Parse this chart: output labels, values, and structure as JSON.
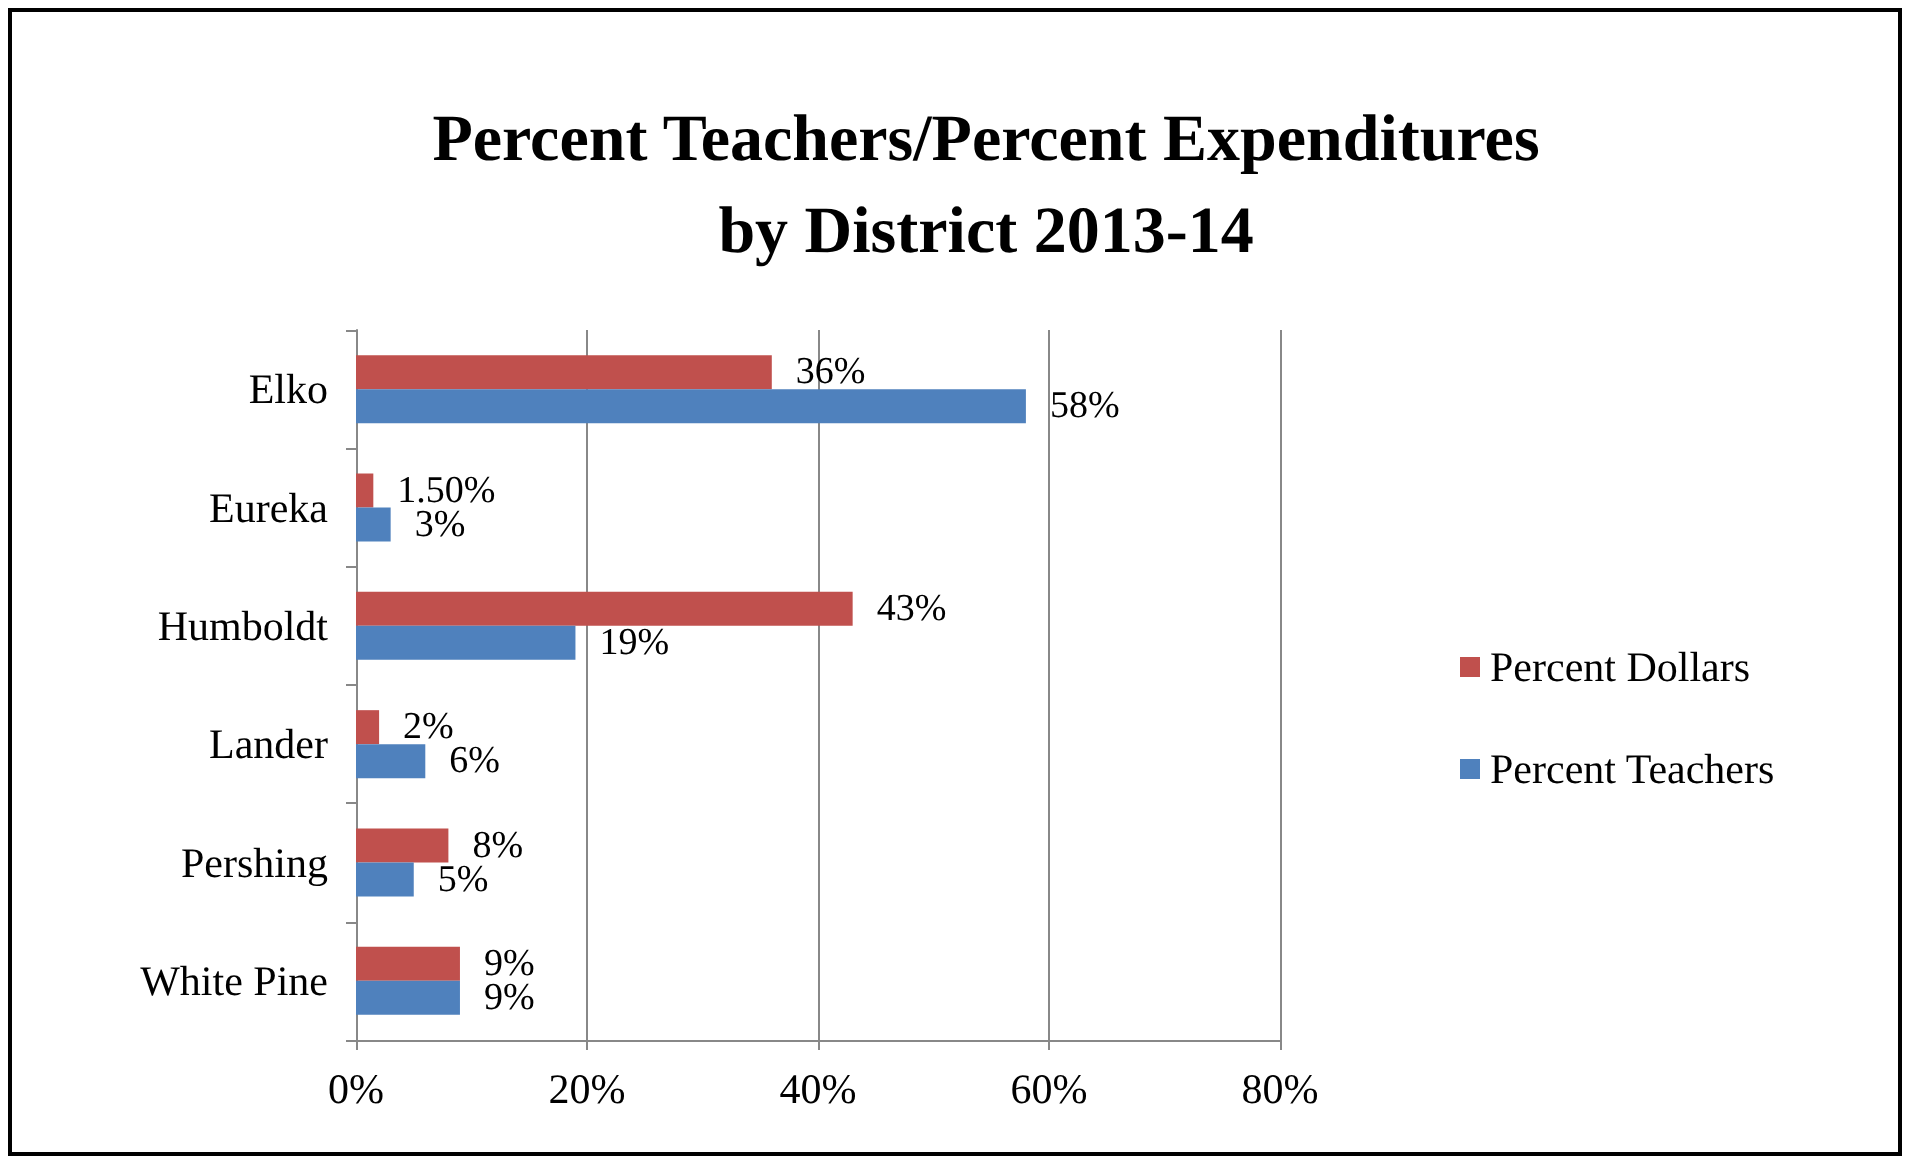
{
  "chart_data": {
    "type": "bar",
    "orientation": "horizontal",
    "title": "Percent Teachers/Percent Expenditures\nby District 2013-14",
    "categories": [
      "Elko",
      "Eureka",
      "Humboldt",
      "Lander",
      "Pershing",
      "White Pine"
    ],
    "series": [
      {
        "name": "Percent Dollars",
        "color": "#c0504d",
        "values": [
          36,
          1.5,
          43,
          2,
          8,
          9
        ],
        "value_labels": [
          "36%",
          "1.50%",
          "43%",
          "2%",
          "8%",
          "9%"
        ]
      },
      {
        "name": "Percent Teachers",
        "color": "#4f81bd",
        "values": [
          58,
          3,
          19,
          6,
          5,
          9
        ],
        "value_labels": [
          "58%",
          "3%",
          "19%",
          "6%",
          "5%",
          "9%"
        ]
      }
    ],
    "xlim": [
      0,
      80
    ],
    "xticks": [
      {
        "value": 0,
        "label": "0%"
      },
      {
        "value": 20,
        "label": "20%"
      },
      {
        "value": 40,
        "label": "40%"
      },
      {
        "value": 60,
        "label": "60%"
      },
      {
        "value": 80,
        "label": "80%"
      }
    ],
    "grid": "x",
    "legend": "right"
  }
}
